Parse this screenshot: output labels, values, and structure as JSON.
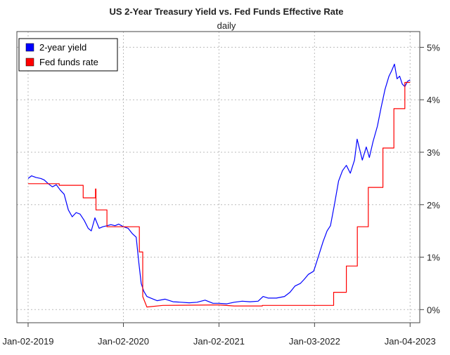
{
  "chart_data": {
    "type": "line",
    "title": "US 2-Year Treasury Yield vs. Fed Funds Effective Rate",
    "subtitle": "daily",
    "xlabel": "",
    "ylabel": "",
    "x_ticks": [
      "Jan-02-2019",
      "Jan-02-2020",
      "Jan-02-2021",
      "Jan-03-2022",
      "Jan-04-2023"
    ],
    "y_ticks": [
      "0%",
      "1%",
      "2%",
      "3%",
      "4%",
      "5%"
    ],
    "y_tick_values": [
      0,
      1,
      2,
      3,
      4,
      5
    ],
    "ylim": [
      -0.25,
      5.3
    ],
    "xlim": [
      "2018-11-20",
      "2023-02-10"
    ],
    "grid": true,
    "y_axis_side": "right",
    "legend_position": "top-left",
    "series": [
      {
        "name": "2-year yield",
        "color": "#0000ff",
        "points": [
          [
            "2019-01-02",
            2.5
          ],
          [
            "2019-01-15",
            2.55
          ],
          [
            "2019-02-01",
            2.52
          ],
          [
            "2019-02-20",
            2.5
          ],
          [
            "2019-03-05",
            2.47
          ],
          [
            "2019-03-20",
            2.4
          ],
          [
            "2019-04-05",
            2.34
          ],
          [
            "2019-04-20",
            2.38
          ],
          [
            "2019-05-05",
            2.28
          ],
          [
            "2019-05-20",
            2.2
          ],
          [
            "2019-06-05",
            1.9
          ],
          [
            "2019-06-20",
            1.77
          ],
          [
            "2019-07-05",
            1.85
          ],
          [
            "2019-07-20",
            1.82
          ],
          [
            "2019-08-05",
            1.7
          ],
          [
            "2019-08-20",
            1.55
          ],
          [
            "2019-09-01",
            1.5
          ],
          [
            "2019-09-15",
            1.75
          ],
          [
            "2019-10-01",
            1.55
          ],
          [
            "2019-10-15",
            1.58
          ],
          [
            "2019-11-01",
            1.6
          ],
          [
            "2019-11-15",
            1.62
          ],
          [
            "2019-12-01",
            1.6
          ],
          [
            "2019-12-15",
            1.63
          ],
          [
            "2020-01-02",
            1.58
          ],
          [
            "2020-01-20",
            1.55
          ],
          [
            "2020-02-05",
            1.45
          ],
          [
            "2020-02-20",
            1.38
          ],
          [
            "2020-03-01",
            0.9
          ],
          [
            "2020-03-10",
            0.5
          ],
          [
            "2020-03-20",
            0.35
          ],
          [
            "2020-04-01",
            0.25
          ],
          [
            "2020-04-20",
            0.21
          ],
          [
            "2020-05-10",
            0.17
          ],
          [
            "2020-06-10",
            0.2
          ],
          [
            "2020-07-10",
            0.15
          ],
          [
            "2020-08-10",
            0.14
          ],
          [
            "2020-09-10",
            0.13
          ],
          [
            "2020-10-10",
            0.14
          ],
          [
            "2020-11-10",
            0.18
          ],
          [
            "2020-12-10",
            0.12
          ],
          [
            "2021-01-02",
            0.12
          ],
          [
            "2021-02-01",
            0.11
          ],
          [
            "2021-03-01",
            0.14
          ],
          [
            "2021-04-01",
            0.16
          ],
          [
            "2021-05-01",
            0.15
          ],
          [
            "2021-06-01",
            0.16
          ],
          [
            "2021-06-20",
            0.25
          ],
          [
            "2021-07-10",
            0.22
          ],
          [
            "2021-08-10",
            0.22
          ],
          [
            "2021-09-10",
            0.25
          ],
          [
            "2021-10-01",
            0.33
          ],
          [
            "2021-10-20",
            0.45
          ],
          [
            "2021-11-10",
            0.5
          ],
          [
            "2021-11-25",
            0.58
          ],
          [
            "2021-12-10",
            0.67
          ],
          [
            "2021-12-30",
            0.73
          ],
          [
            "2022-01-03",
            0.78
          ],
          [
            "2022-01-20",
            1.05
          ],
          [
            "2022-02-05",
            1.3
          ],
          [
            "2022-02-20",
            1.5
          ],
          [
            "2022-03-05",
            1.6
          ],
          [
            "2022-03-20",
            2.0
          ],
          [
            "2022-04-05",
            2.45
          ],
          [
            "2022-04-20",
            2.65
          ],
          [
            "2022-05-05",
            2.75
          ],
          [
            "2022-05-20",
            2.6
          ],
          [
            "2022-06-05",
            2.85
          ],
          [
            "2022-06-15",
            3.25
          ],
          [
            "2022-06-25",
            3.05
          ],
          [
            "2022-07-05",
            2.85
          ],
          [
            "2022-07-20",
            3.1
          ],
          [
            "2022-08-01",
            2.9
          ],
          [
            "2022-08-15",
            3.2
          ],
          [
            "2022-09-01",
            3.5
          ],
          [
            "2022-09-15",
            3.85
          ],
          [
            "2022-09-30",
            4.2
          ],
          [
            "2022-10-15",
            4.45
          ],
          [
            "2022-10-25",
            4.55
          ],
          [
            "2022-11-05",
            4.68
          ],
          [
            "2022-11-15",
            4.4
          ],
          [
            "2022-11-25",
            4.45
          ],
          [
            "2022-12-05",
            4.3
          ],
          [
            "2022-12-15",
            4.25
          ],
          [
            "2022-12-25",
            4.35
          ],
          [
            "2023-01-04",
            4.38
          ]
        ]
      },
      {
        "name": "Fed funds rate",
        "color": "#ff0000",
        "points": [
          [
            "2019-01-02",
            2.4
          ],
          [
            "2019-05-01",
            2.4
          ],
          [
            "2019-05-01",
            2.37
          ],
          [
            "2019-08-01",
            2.37
          ],
          [
            "2019-08-01",
            2.13
          ],
          [
            "2019-09-17",
            2.13
          ],
          [
            "2019-09-17",
            2.3
          ],
          [
            "2019-09-19",
            2.3
          ],
          [
            "2019-09-19",
            1.9
          ],
          [
            "2019-10-31",
            1.9
          ],
          [
            "2019-10-31",
            1.58
          ],
          [
            "2020-03-03",
            1.58
          ],
          [
            "2020-03-03",
            1.1
          ],
          [
            "2020-03-16",
            1.1
          ],
          [
            "2020-03-16",
            0.25
          ],
          [
            "2020-04-01",
            0.05
          ],
          [
            "2020-06-01",
            0.08
          ],
          [
            "2020-12-31",
            0.09
          ],
          [
            "2021-01-02",
            0.09
          ],
          [
            "2021-03-01",
            0.07
          ],
          [
            "2021-06-17",
            0.07
          ],
          [
            "2021-06-17",
            0.08
          ],
          [
            "2021-12-31",
            0.08
          ],
          [
            "2022-03-17",
            0.08
          ],
          [
            "2022-03-17",
            0.33
          ],
          [
            "2022-05-05",
            0.33
          ],
          [
            "2022-05-05",
            0.83
          ],
          [
            "2022-06-16",
            0.83
          ],
          [
            "2022-06-16",
            1.58
          ],
          [
            "2022-07-28",
            1.58
          ],
          [
            "2022-07-28",
            2.33
          ],
          [
            "2022-09-22",
            2.33
          ],
          [
            "2022-09-22",
            3.08
          ],
          [
            "2022-11-03",
            3.08
          ],
          [
            "2022-11-03",
            3.83
          ],
          [
            "2022-12-15",
            3.83
          ],
          [
            "2022-12-15",
            4.33
          ],
          [
            "2023-01-04",
            4.33
          ]
        ]
      }
    ]
  }
}
